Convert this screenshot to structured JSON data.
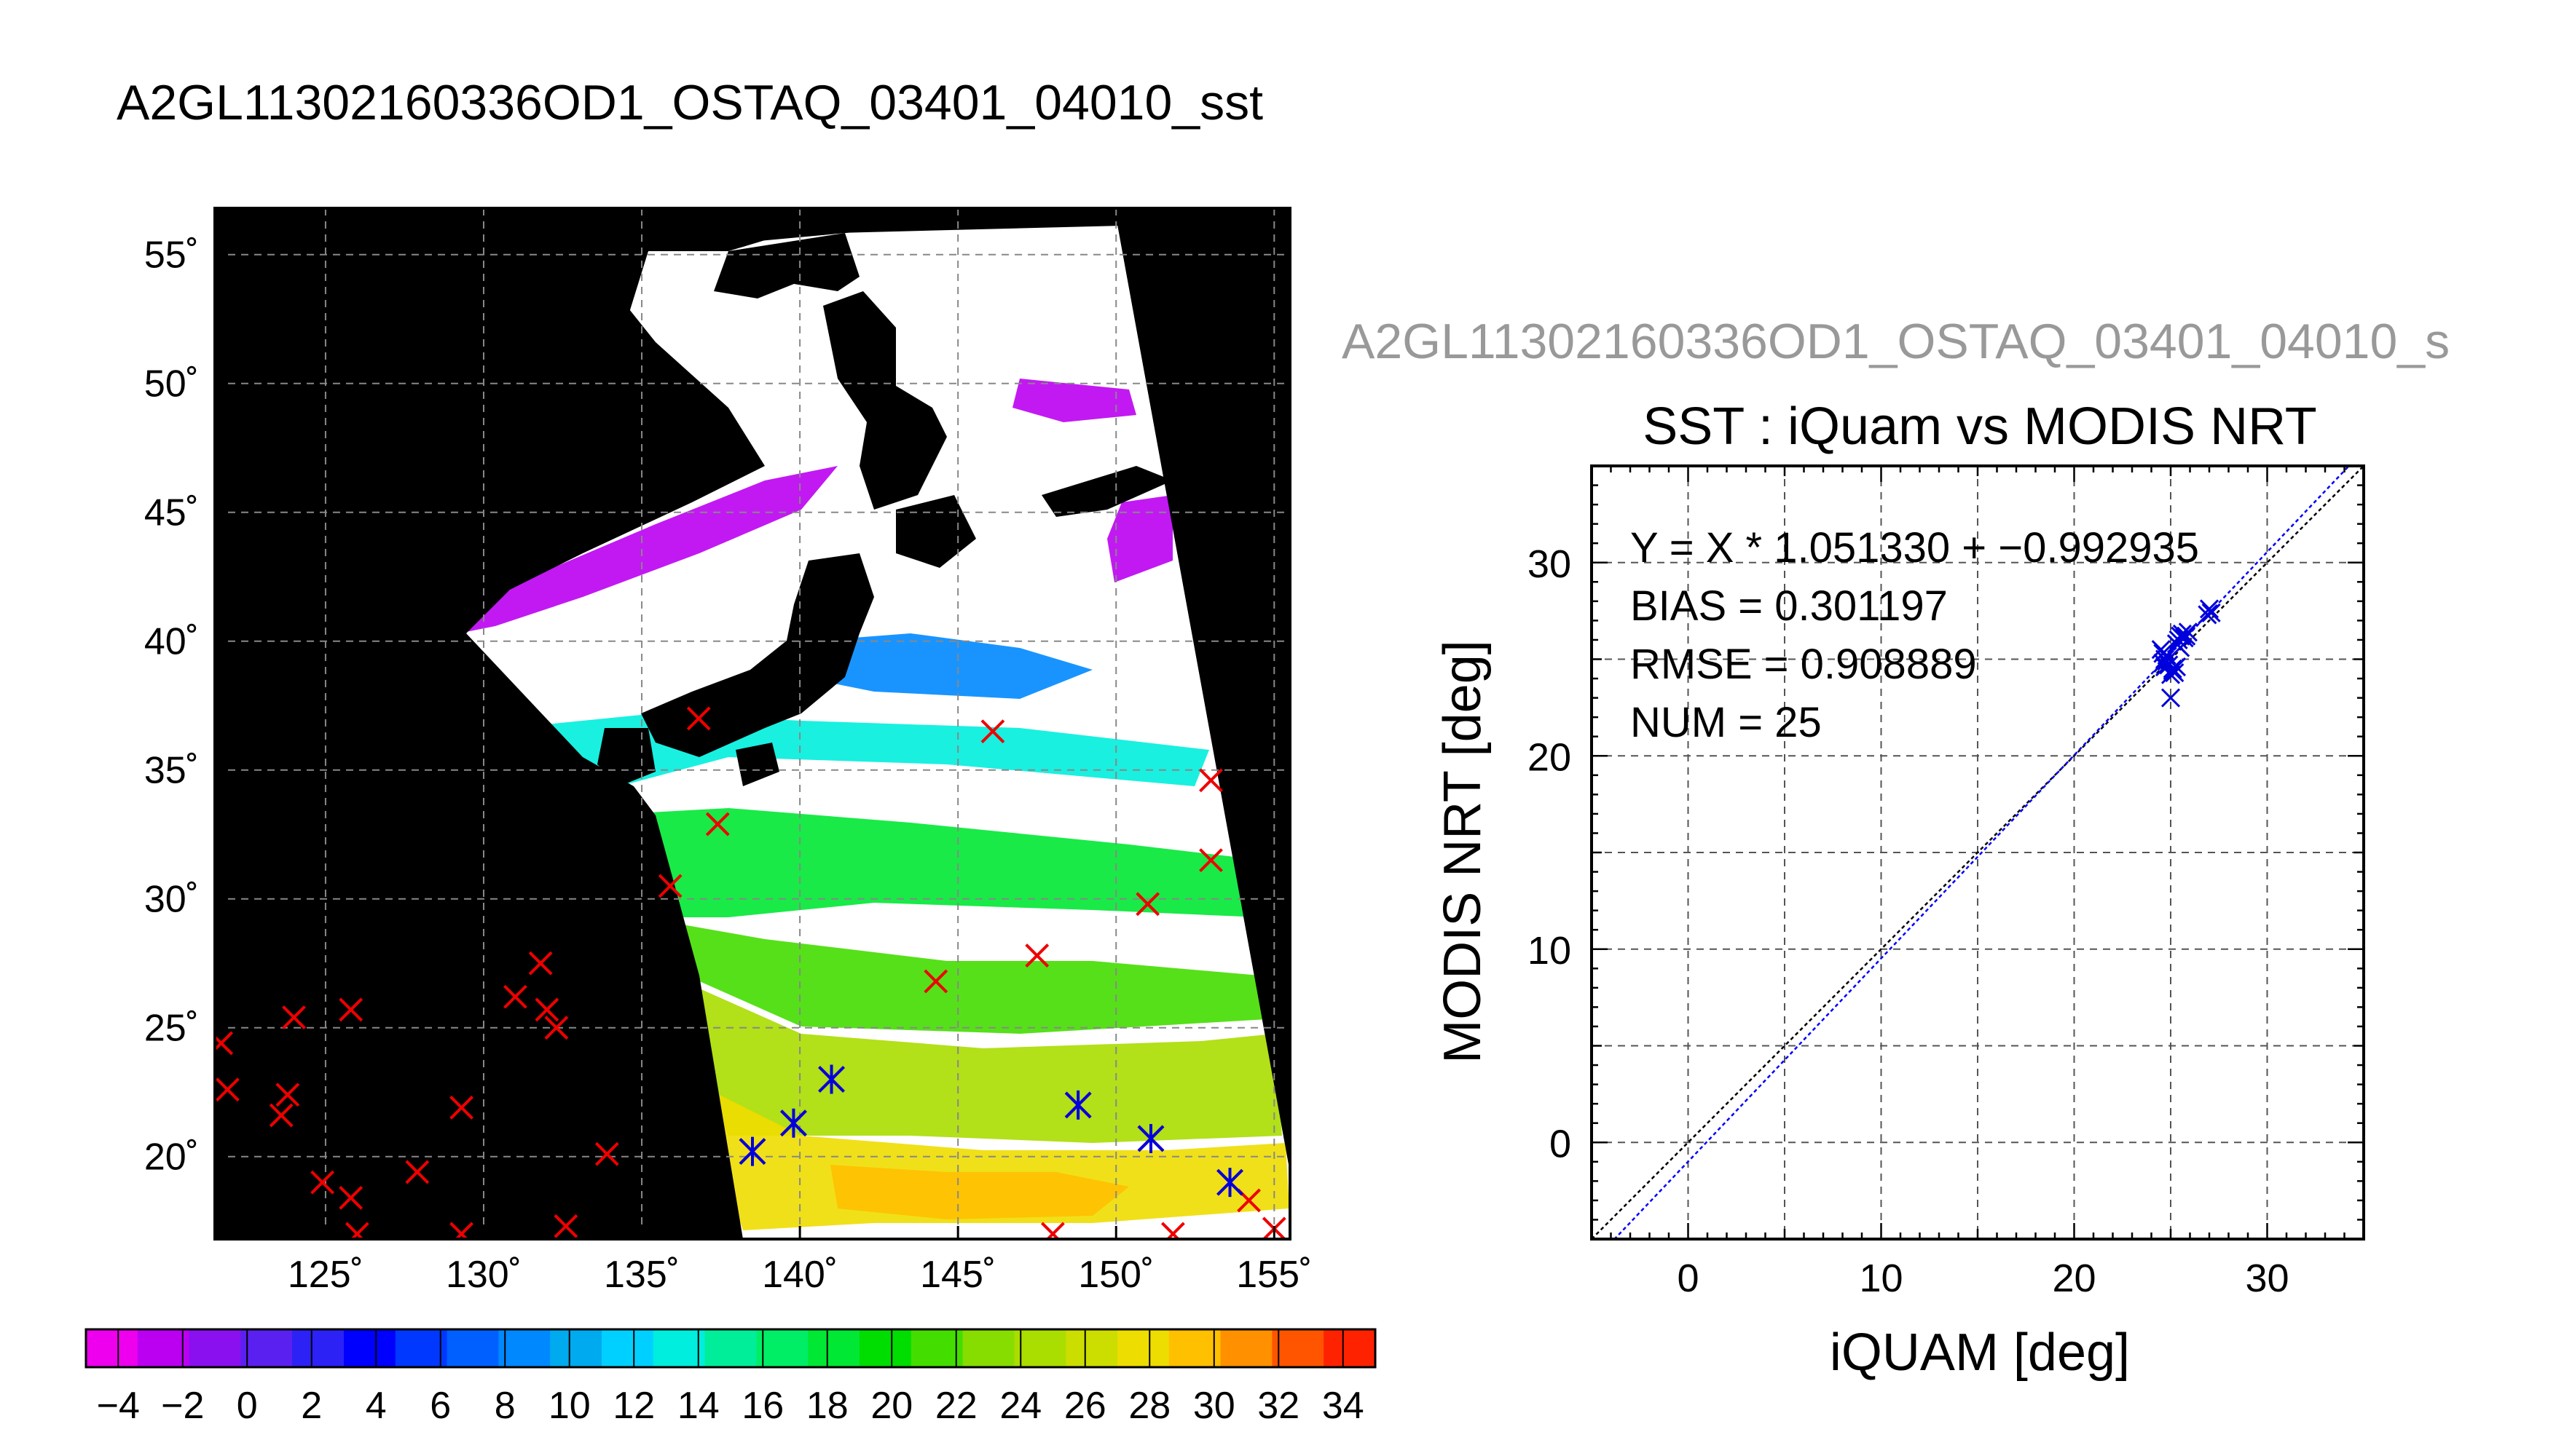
{
  "main_title": "A2GL11302160336OD1_OSTAQ_03401_04010_sst",
  "colors": {
    "match_marker": "#0000dd",
    "unmatched_marker": "#ee0000",
    "fit_line": "#0000ff",
    "one_to_one_line": "#000000",
    "land": "#000000"
  },
  "chart_data": [
    {
      "type": "heatmap",
      "lon_ticks": [
        "125˚",
        "130˚",
        "135˚",
        "140˚",
        "145˚",
        "150˚",
        "155˚"
      ],
      "lon_values": [
        125,
        130,
        135,
        140,
        145,
        150,
        155
      ],
      "lat_ticks": [
        "55˚",
        "50˚",
        "45˚",
        "40˚",
        "35˚",
        "30˚",
        "25˚",
        "20˚"
      ],
      "lat_values": [
        55,
        50,
        45,
        40,
        35,
        30,
        25,
        20
      ],
      "xlim": [
        121.5,
        155.5
      ],
      "ylim": [
        16.8,
        56.8
      ],
      "grid": true,
      "colorbar": {
        "tick_labels": [
          "−4",
          "−2",
          "0",
          "2",
          "4",
          "6",
          "8",
          "10",
          "12",
          "14",
          "16",
          "18",
          "20",
          "22",
          "24",
          "26",
          "28",
          "30",
          "32",
          "34"
        ],
        "range": [
          -5,
          35
        ],
        "colors": [
          "#ee00ee",
          "#bb00f2",
          "#8a10f0",
          "#5a20f0",
          "#2c22f5",
          "#0000ff",
          "#0038ff",
          "#0060ff",
          "#0088ff",
          "#00aaee",
          "#00d0ff",
          "#00eedd",
          "#00ee99",
          "#00ee66",
          "#00e833",
          "#00dd00",
          "#44dd00",
          "#88dd00",
          "#aadd00",
          "#ccdd00",
          "#eedd00",
          "#ffc000",
          "#ff9000",
          "#ff5500",
          "#ff2200"
        ]
      },
      "unmatched_points": [
        [
          121.7,
          24.4
        ],
        [
          121.9,
          22.6
        ],
        [
          123.6,
          21.6
        ],
        [
          123.8,
          22.4
        ],
        [
          124.0,
          25.4
        ],
        [
          124.9,
          19.0
        ],
        [
          125.8,
          25.7
        ],
        [
          125.8,
          18.4
        ],
        [
          126.0,
          17.0
        ],
        [
          127.9,
          19.4
        ],
        [
          129.3,
          17.0
        ],
        [
          129.3,
          21.9
        ],
        [
          131.0,
          26.2
        ],
        [
          131.8,
          27.5
        ],
        [
          132.0,
          25.7
        ],
        [
          132.3,
          25.0
        ],
        [
          132.6,
          17.3
        ],
        [
          133.9,
          20.1
        ],
        [
          135.9,
          30.5
        ],
        [
          136.8,
          37.0
        ],
        [
          137.4,
          32.9
        ],
        [
          146.1,
          36.5
        ],
        [
          144.3,
          26.8
        ],
        [
          147.5,
          27.8
        ],
        [
          151.0,
          29.8
        ],
        [
          153.0,
          31.5
        ],
        [
          153.0,
          34.6
        ],
        [
          154.2,
          18.3
        ],
        [
          155.0,
          17.2
        ],
        [
          148.0,
          17.0
        ],
        [
          151.8,
          17.0
        ]
      ],
      "matched_points": [
        [
          138.5,
          20.2
        ],
        [
          139.8,
          21.3
        ],
        [
          141.0,
          23.0
        ],
        [
          148.8,
          22.0
        ],
        [
          151.1,
          20.7
        ],
        [
          153.6,
          19.0
        ]
      ]
    },
    {
      "type": "scatter",
      "figure_title": "A2GL11302160336OD1_OSTAQ_03401_04010_s",
      "title": "SST : iQuam vs MODIS NRT",
      "xlabel": "iQUAM [deg]",
      "ylabel": "MODIS NRT [deg]",
      "xlim": [
        -5,
        35
      ],
      "ylim": [
        -5,
        35
      ],
      "x_ticks": [
        "0",
        "10",
        "20",
        "30"
      ],
      "y_ticks": [
        "0",
        "10",
        "20",
        "30"
      ],
      "grid": true,
      "annotations": [
        "Y = X * 1.051330 + −0.992935",
        "BIAS = 0.301197",
        "RMSE = 0.908889",
        "NUM = 25"
      ],
      "fit": {
        "slope": 1.05133,
        "intercept": -0.992935
      },
      "points": [
        {
          "x": 24.5,
          "y": 25.5
        },
        {
          "x": 24.6,
          "y": 24.8
        },
        {
          "x": 24.7,
          "y": 25.0
        },
        {
          "x": 24.8,
          "y": 25.2
        },
        {
          "x": 24.9,
          "y": 24.7
        },
        {
          "x": 25.0,
          "y": 24.2
        },
        {
          "x": 25.1,
          "y": 24.5
        },
        {
          "x": 25.2,
          "y": 24.3
        },
        {
          "x": 25.0,
          "y": 23.0
        },
        {
          "x": 25.3,
          "y": 25.8
        },
        {
          "x": 25.4,
          "y": 26.0
        },
        {
          "x": 25.5,
          "y": 25.6
        },
        {
          "x": 25.6,
          "y": 26.3
        },
        {
          "x": 25.7,
          "y": 26.1
        },
        {
          "x": 25.8,
          "y": 26.2
        },
        {
          "x": 24.6,
          "y": 25.3
        },
        {
          "x": 24.8,
          "y": 24.9
        },
        {
          "x": 25.1,
          "y": 24.4
        },
        {
          "x": 25.3,
          "y": 24.6
        },
        {
          "x": 25.5,
          "y": 26.2
        },
        {
          "x": 26.9,
          "y": 27.3
        },
        {
          "x": 27.0,
          "y": 27.6
        },
        {
          "x": 27.1,
          "y": 27.4
        },
        {
          "x": 24.7,
          "y": 24.6
        },
        {
          "x": 25.9,
          "y": 26.4
        }
      ]
    }
  ]
}
